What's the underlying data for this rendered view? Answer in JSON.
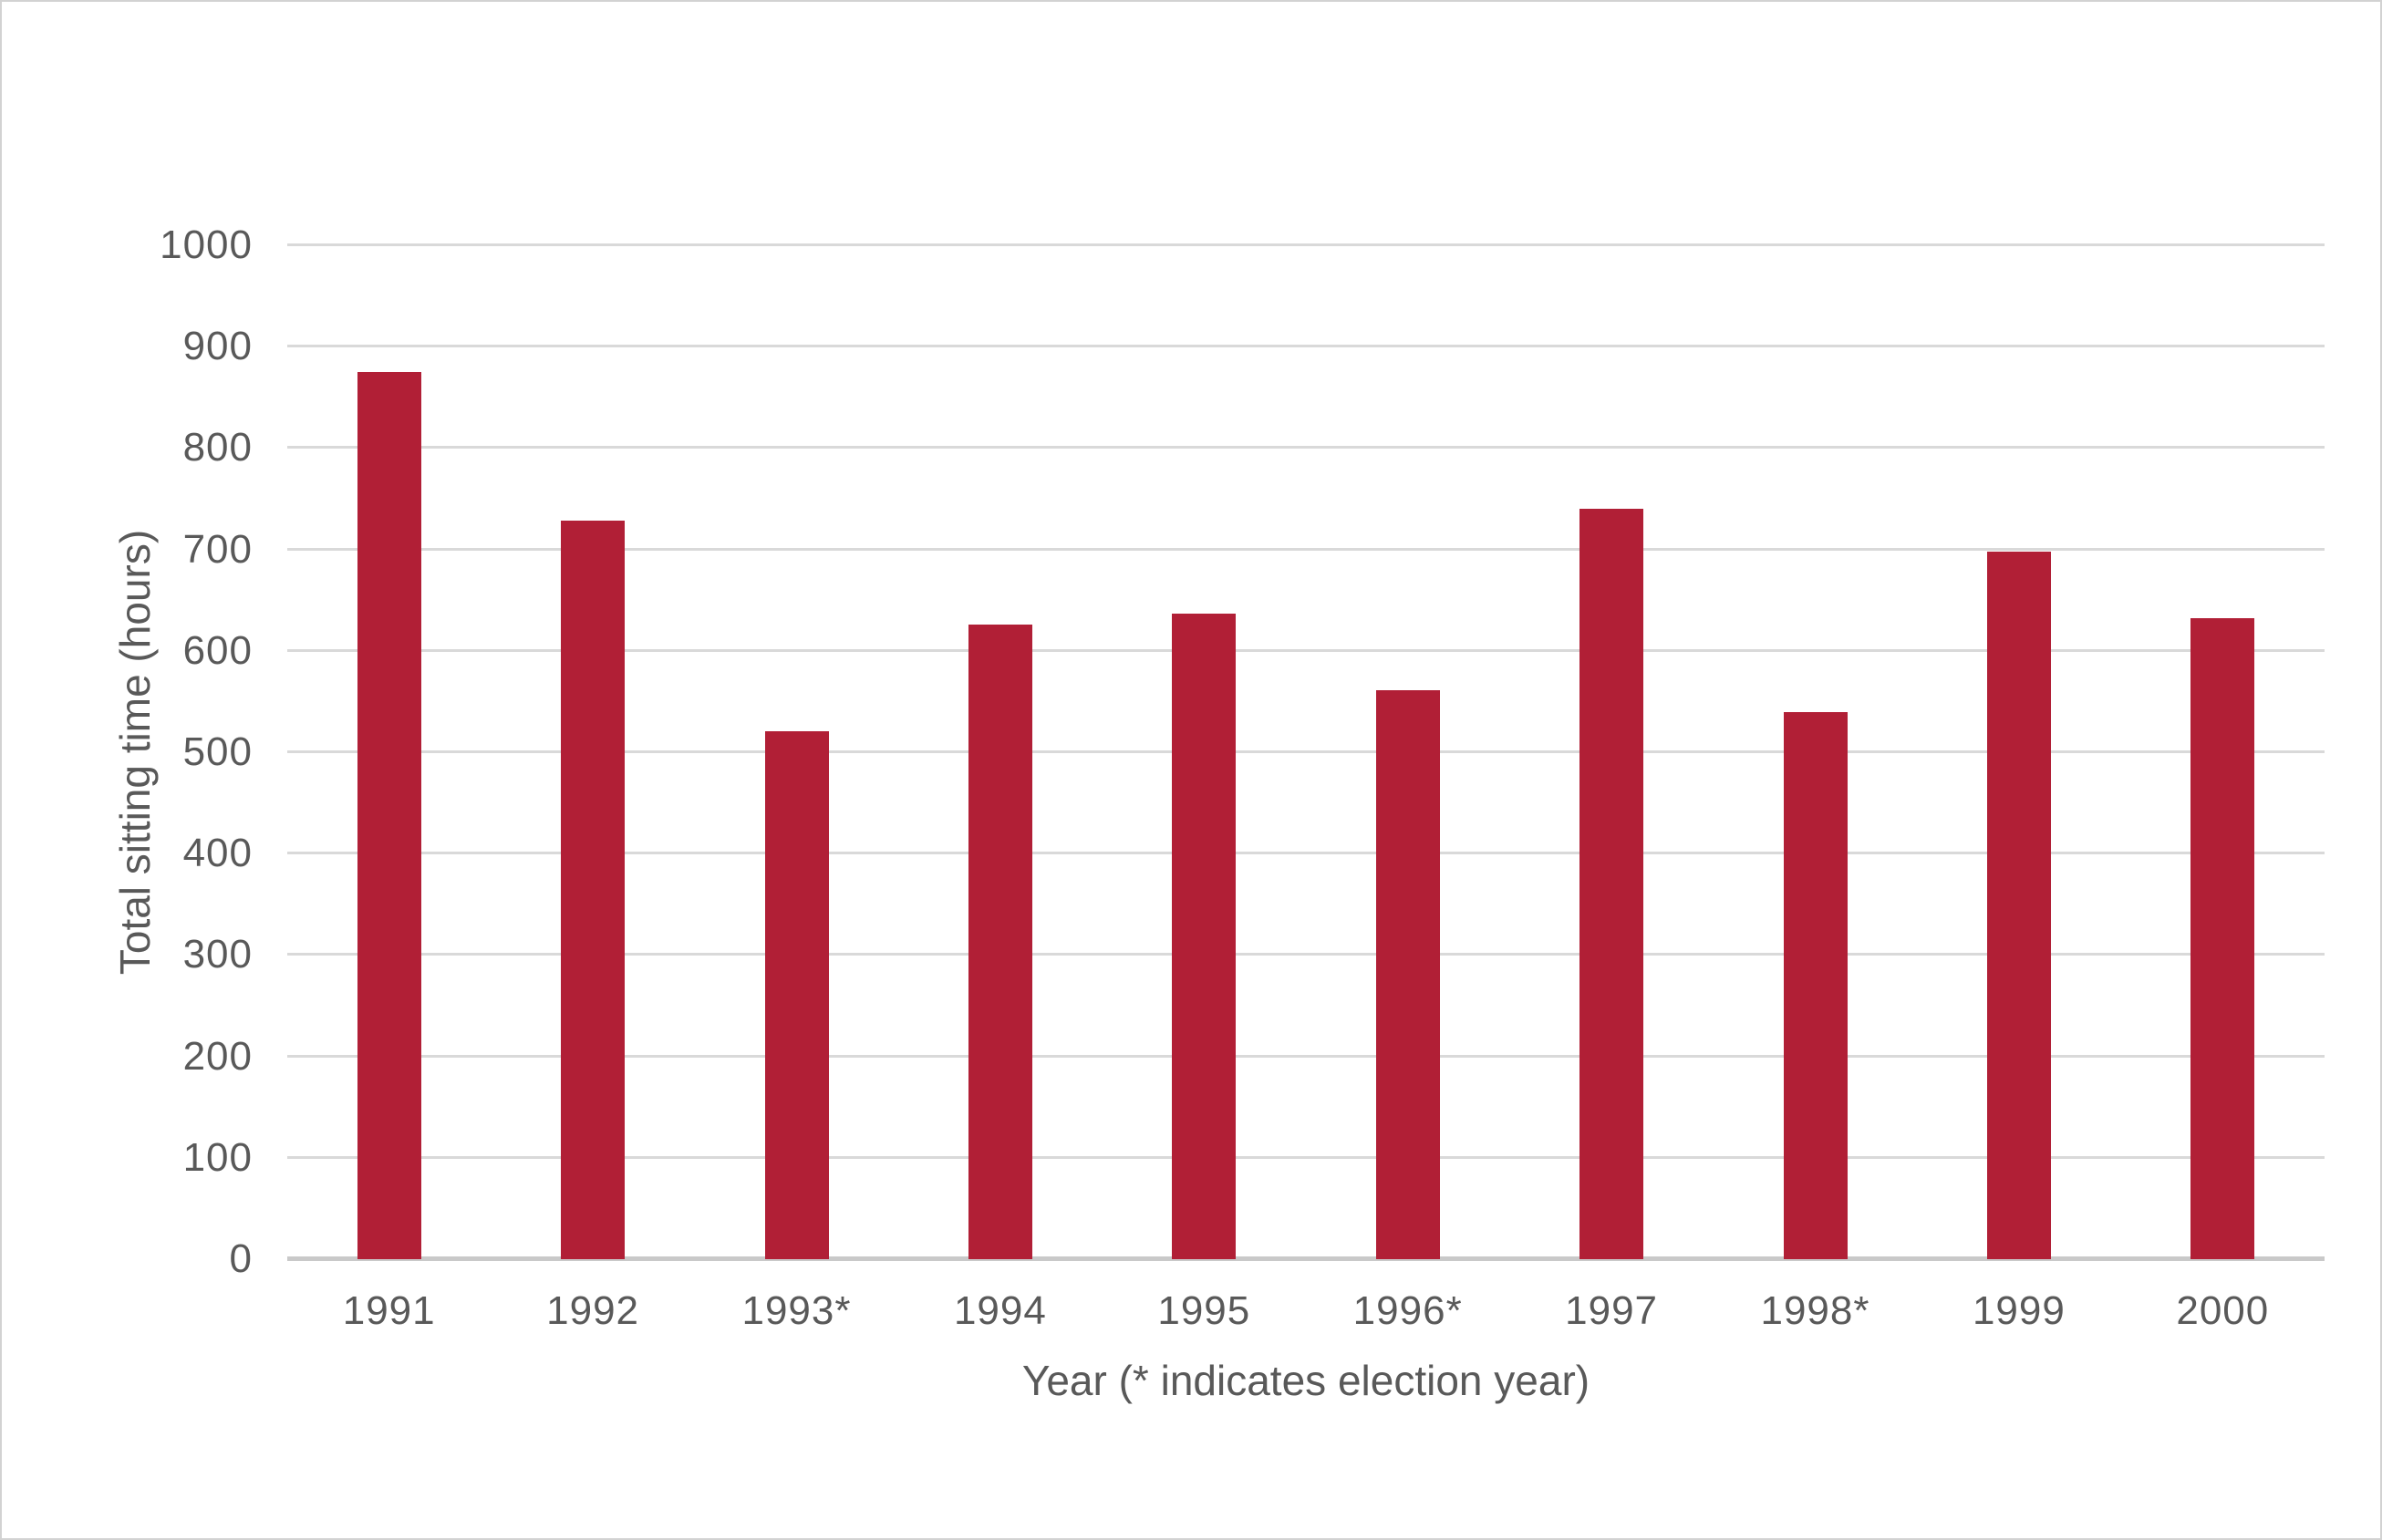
{
  "chart_data": {
    "type": "bar",
    "categories": [
      "1991",
      "1992",
      "1993*",
      "1994",
      "1995",
      "1996*",
      "1997",
      "1998*",
      "1999",
      "2000"
    ],
    "values": [
      875,
      728,
      521,
      626,
      637,
      561,
      740,
      540,
      698,
      632
    ],
    "xlabel": "Year (* indicates election year)",
    "ylabel": "Total sitting time (hours)",
    "ylim": [
      0,
      1000
    ],
    "yticks": [
      0,
      100,
      200,
      300,
      400,
      500,
      600,
      700,
      800,
      900,
      1000
    ],
    "grid": "horizontal",
    "legend": false,
    "bar_color": "#B11F36"
  },
  "colors": {
    "bar": "#B11F36",
    "gridline": "#D9D9D9",
    "axis_line": "#C9C9C9",
    "text": "#595959",
    "background": "#FFFFFF",
    "frame_border": "#D2D2D2"
  }
}
